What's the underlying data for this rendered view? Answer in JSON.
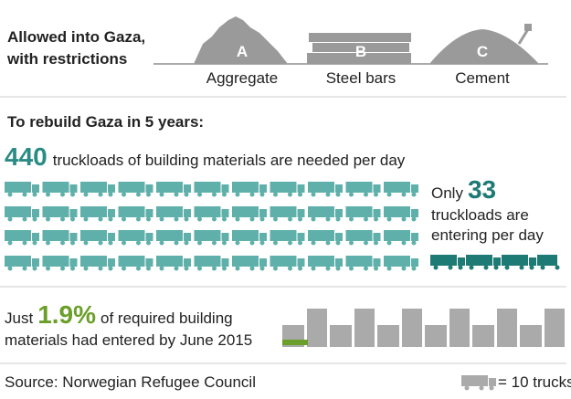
{
  "header": {
    "title_lines": [
      "Allowed into Gaza,",
      "with restrictions"
    ]
  },
  "materials": [
    {
      "letter": "A",
      "label": "Aggregate"
    },
    {
      "letter": "B",
      "label": "Steel bars"
    },
    {
      "letter": "C",
      "label": "Cement"
    }
  ],
  "section_title": "To rebuild Gaza in 5 years:",
  "needed": {
    "number": "440",
    "text": "truckloads of building materials are needed per day"
  },
  "entering": {
    "prefix": "Only",
    "number": "33",
    "lines": [
      "truckloads are",
      "entering per day"
    ]
  },
  "share": {
    "prefix": "Just",
    "number": "1.9%",
    "rest": "of required building",
    "line2": "materials had entered by June 2015"
  },
  "source": "Source: Norwegian Refugee Council",
  "legend": "= 10 trucks"
}
